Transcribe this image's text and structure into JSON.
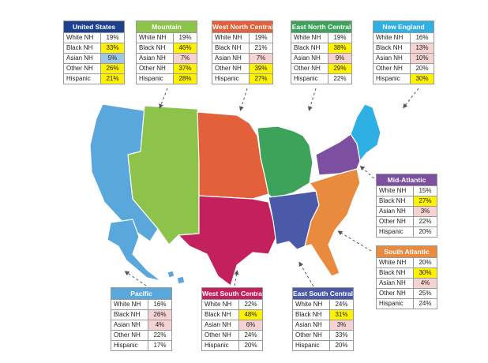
{
  "colors": {
    "us": "#1c3f8f",
    "mountain": "#8dc24b",
    "wnc": "#e2603a",
    "enc": "#3ea35a",
    "ne": "#2eb0e5",
    "mid": "#7c4fa0",
    "sa": "#e98b3f",
    "wsc": "#c2215e",
    "esc": "#4b5aa8",
    "pac": "#5aa7dc"
  },
  "regions": {
    "us": {
      "title": "United States",
      "rows": [
        {
          "label": "White NH",
          "value": "19%"
        },
        {
          "label": "Black NH",
          "value": "33%",
          "hl": "yellow"
        },
        {
          "label": "Asian NH",
          "value": "5%",
          "hl": "blue"
        },
        {
          "label": "Other NH",
          "value": "26%",
          "hl": "yellow"
        },
        {
          "label": "Hispanic",
          "value": "21%",
          "hl": "yellow"
        }
      ]
    },
    "mtn": {
      "title": "Mountain",
      "rows": [
        {
          "label": "White NH",
          "value": "19%"
        },
        {
          "label": "Black NH",
          "value": "46%",
          "hl": "yellow"
        },
        {
          "label": "Asian NH",
          "value": "7%",
          "hl": "pink"
        },
        {
          "label": "Other NH",
          "value": "37%",
          "hl": "yellow"
        },
        {
          "label": "Hispanic",
          "value": "28%",
          "hl": "yellow"
        }
      ]
    },
    "wnc": {
      "title": "West North Central",
      "rows": [
        {
          "label": "White NH",
          "value": "19%"
        },
        {
          "label": "Black NH",
          "value": "21%"
        },
        {
          "label": "Asian NH",
          "value": "7%",
          "hl": "pink"
        },
        {
          "label": "Other NH",
          "value": "39%",
          "hl": "yellow"
        },
        {
          "label": "Hispanic",
          "value": "27%",
          "hl": "yellow"
        }
      ]
    },
    "enc": {
      "title": "East North Central",
      "rows": [
        {
          "label": "White NH",
          "value": "19%"
        },
        {
          "label": "Black NH",
          "value": "38%",
          "hl": "yellow"
        },
        {
          "label": "Asian NH",
          "value": "9%",
          "hl": "pink"
        },
        {
          "label": "Other NH",
          "value": "29%",
          "hl": "yellow"
        },
        {
          "label": "Hispanic",
          "value": "22%"
        }
      ]
    },
    "ne": {
      "title": "New England",
      "rows": [
        {
          "label": "White NH",
          "value": "16%"
        },
        {
          "label": "Black NH",
          "value": "13%",
          "hl": "pink"
        },
        {
          "label": "Asian NH",
          "value": "10%",
          "hl": "pink"
        },
        {
          "label": "Other NH",
          "value": "20%"
        },
        {
          "label": "Hispanic",
          "value": "30%",
          "hl": "yellow"
        }
      ]
    },
    "mid": {
      "title": "Mid-Atlantic",
      "rows": [
        {
          "label": "White NH",
          "value": "15%"
        },
        {
          "label": "Black NH",
          "value": "27%",
          "hl": "yellow"
        },
        {
          "label": "Asian NH",
          "value": "3%",
          "hl": "pink"
        },
        {
          "label": "Other NH",
          "value": "22%"
        },
        {
          "label": "Hispanic",
          "value": "20%"
        }
      ]
    },
    "sa": {
      "title": "South Atlantic",
      "rows": [
        {
          "label": "White NH",
          "value": "20%"
        },
        {
          "label": "Black NH",
          "value": "30%",
          "hl": "yellow"
        },
        {
          "label": "Asian NH",
          "value": "4%",
          "hl": "pink"
        },
        {
          "label": "Other NH",
          "value": "25%"
        },
        {
          "label": "Hispanic",
          "value": "24%"
        }
      ]
    },
    "pac": {
      "title": "Pacific",
      "rows": [
        {
          "label": "White NH",
          "value": "16%"
        },
        {
          "label": "Black NH",
          "value": "26%",
          "hl": "pink"
        },
        {
          "label": "Asian NH",
          "value": "4%",
          "hl": "pink"
        },
        {
          "label": "Other NH",
          "value": "22%"
        },
        {
          "label": "Hispanic",
          "value": "17%"
        }
      ]
    },
    "wsc": {
      "title": "West South Central",
      "rows": [
        {
          "label": "White NH",
          "value": "22%"
        },
        {
          "label": "Black NH",
          "value": "48%",
          "hl": "yellow"
        },
        {
          "label": "Asian NH",
          "value": "6%",
          "hl": "pink"
        },
        {
          "label": "Other NH",
          "value": "24%"
        },
        {
          "label": "Hispanic",
          "value": "20%"
        }
      ]
    },
    "esc": {
      "title": "East South Central",
      "rows": [
        {
          "label": "White NH",
          "value": "24%"
        },
        {
          "label": "Black NH",
          "value": "31%",
          "hl": "yellow"
        },
        {
          "label": "Asian NH",
          "value": "3%",
          "hl": "pink"
        },
        {
          "label": "Other NH",
          "value": "33%"
        },
        {
          "label": "Hispanic",
          "value": "20%"
        }
      ]
    }
  }
}
